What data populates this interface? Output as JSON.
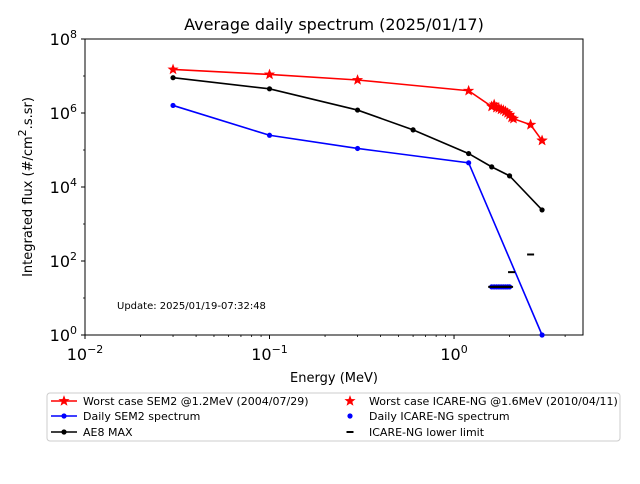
{
  "chart_data": {
    "type": "line",
    "title": "Average daily spectrum (2025/01/17)",
    "xlabel": "Energy (MeV)",
    "ylabel_prefix": "Integrated flux (#/cm",
    "ylabel_sup": "2",
    "ylabel_suffix": ".s.sr)",
    "xscale": "log",
    "yscale": "log",
    "xlim": [
      0.01,
      5
    ],
    "ylim": [
      1,
      100000000
    ],
    "x_ticks": [
      {
        "value": 0.01,
        "base": "10",
        "exp": "−2"
      },
      {
        "value": 0.1,
        "base": "10",
        "exp": "−1"
      },
      {
        "value": 1,
        "base": "10",
        "exp": "0"
      }
    ],
    "y_ticks": [
      {
        "value": 1,
        "base": "10",
        "exp": "0"
      },
      {
        "value": 100,
        "base": "10",
        "exp": "2"
      },
      {
        "value": 10000,
        "base": "10",
        "exp": "4"
      },
      {
        "value": 1000000,
        "base": "10",
        "exp": "6"
      },
      {
        "value": 100000000,
        "base": "10",
        "exp": "8"
      }
    ],
    "grid": false,
    "legend_position": "bottom",
    "annotation": "Update: 2025/01/19-07:32:48",
    "series": [
      {
        "name": "Worst case SEM2 @1.2MeV (2004/07/29)",
        "color": "#ff0000",
        "marker": "star",
        "line": true,
        "x": [
          0.03,
          0.1,
          0.3,
          1.2,
          1.6,
          1.7,
          1.8,
          1.9,
          2.0,
          2.1,
          2.6,
          3.0
        ],
        "y": [
          15000000,
          11000000,
          7800000,
          4000000,
          1500000,
          1400000,
          1250000,
          1100000,
          900000,
          700000,
          480000,
          180000
        ]
      },
      {
        "name": "Daily SEM2 spectrum",
        "color": "#0000ff",
        "marker": "dot",
        "line": true,
        "x": [
          0.03,
          0.1,
          0.3,
          1.2,
          3.0
        ],
        "y": [
          1600000,
          250000,
          110000,
          45000,
          1
        ]
      },
      {
        "name": "AE8 MAX",
        "color": "#000000",
        "marker": "dot",
        "line": true,
        "x": [
          0.03,
          0.1,
          0.3,
          0.6,
          1.2,
          1.6,
          2.0,
          3.0
        ],
        "y": [
          9000000,
          4500000,
          1200000,
          350000,
          80000,
          35000,
          20000,
          2400
        ]
      },
      {
        "name": "Worst case ICARE-NG @1.6MeV (2010/04/11)",
        "color": "#ff0000",
        "marker": "star",
        "line": false,
        "x": [
          1.6,
          1.65,
          1.7,
          1.75,
          1.8,
          1.85,
          1.9,
          1.95,
          2.0,
          2.05,
          2.6,
          3.0
        ],
        "y": [
          1500000,
          1700000,
          1400000,
          1350000,
          1250000,
          1200000,
          1100000,
          1000000,
          900000,
          750000,
          480000,
          180000
        ]
      },
      {
        "name": "Daily ICARE-NG spectrum",
        "color": "#0000ff",
        "marker": "dot",
        "line": false,
        "x": [
          1.6,
          1.65,
          1.7,
          1.75,
          1.8,
          1.85,
          1.9,
          1.95,
          2.0
        ],
        "y": [
          20,
          20,
          20,
          20,
          20,
          20,
          20,
          20,
          20
        ]
      },
      {
        "name": "ICARE-NG lower limit",
        "color": "#000000",
        "marker": "hline",
        "line": false,
        "x": [
          1.6,
          1.65,
          1.7,
          1.75,
          1.8,
          1.85,
          1.9,
          1.95,
          2.0,
          2.05,
          2.6
        ],
        "y": [
          20,
          20,
          20,
          20,
          20,
          20,
          20,
          20,
          20,
          50,
          150
        ]
      }
    ],
    "legend_layout": [
      {
        "series": 0,
        "col": 0,
        "row": 0
      },
      {
        "series": 1,
        "col": 0,
        "row": 1
      },
      {
        "series": 2,
        "col": 0,
        "row": 2
      },
      {
        "series": 3,
        "col": 1,
        "row": 0
      },
      {
        "series": 4,
        "col": 1,
        "row": 1
      },
      {
        "series": 5,
        "col": 1,
        "row": 2
      }
    ]
  }
}
